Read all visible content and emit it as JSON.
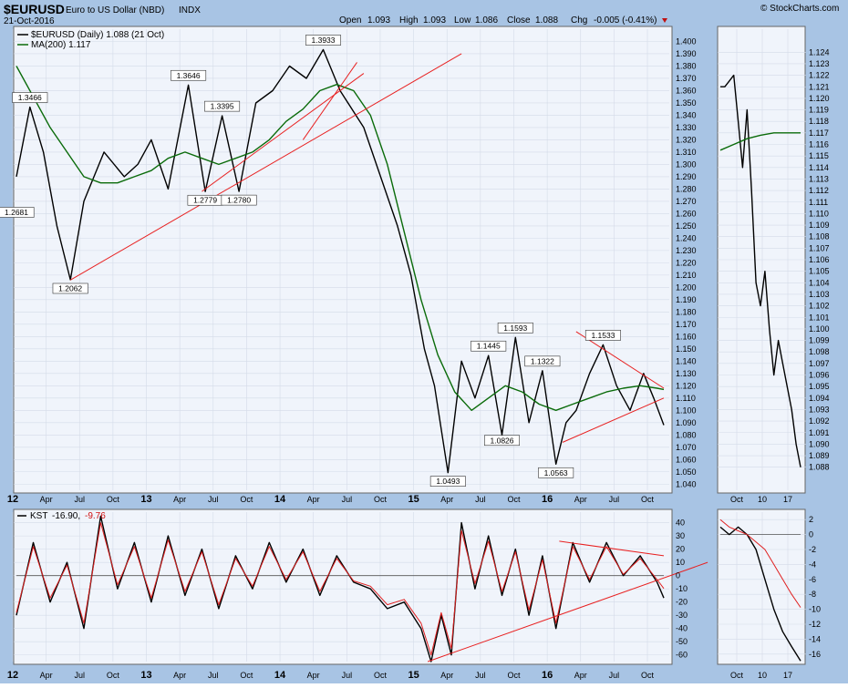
{
  "header": {
    "symbol": "$EURUSD",
    "name": "Euro to US Dollar (NBD)",
    "exchange": "INDX",
    "date": "21-Oct-2016",
    "brand": "© StockCharts.com",
    "open_label": "Open",
    "open": "1.093",
    "high_label": "High",
    "high": "1.093",
    "low_label": "Low",
    "low": "1.086",
    "close_label": "Close",
    "close": "1.088",
    "chg_label": "Chg",
    "chg": "-0.005 (-0.41%)"
  },
  "legend": {
    "price": "$EURUSD (Daily) 1.088 (21 Oct)",
    "ma": "MA(200) 1.117",
    "kst_name": "KST",
    "kst_value": "-16.90,",
    "kst_signal": "-9.76"
  },
  "colors": {
    "background": "#a8c4e4",
    "plot": "#f0f4fb",
    "price": "#000000",
    "ma": "#0a6b0a",
    "trendline": "#e82020",
    "signal": "#e02020"
  },
  "chart_data": [
    {
      "type": "line",
      "panel": "price",
      "ylim": [
        1.035,
        1.41
      ],
      "yticks": [
        1.04,
        1.05,
        1.06,
        1.07,
        1.08,
        1.09,
        1.1,
        1.11,
        1.12,
        1.13,
        1.14,
        1.15,
        1.16,
        1.17,
        1.18,
        1.19,
        1.2,
        1.21,
        1.22,
        1.23,
        1.24,
        1.25,
        1.26,
        1.27,
        1.28,
        1.29,
        1.3,
        1.31,
        1.32,
        1.33,
        1.34,
        1.35,
        1.36,
        1.37,
        1.38,
        1.39,
        1.4
      ],
      "xlabels": [
        "12",
        "Apr",
        "Jul",
        "Oct",
        "13",
        "Apr",
        "Jul",
        "Oct",
        "14",
        "Apr",
        "Jul",
        "Oct",
        "15",
        "Apr",
        "Jul",
        "Oct",
        "16",
        "Apr",
        "Jul",
        "Oct"
      ],
      "series": [
        {
          "name": "$EURUSD",
          "x": [
            0,
            0.4,
            0.8,
            1.2,
            1.6,
            2,
            2.6,
            3.2,
            3.6,
            4,
            4.5,
            5.1,
            5.6,
            6.1,
            6.6,
            7.1,
            7.6,
            8.1,
            8.6,
            9.1,
            9.6,
            10.3,
            10.8,
            11.3,
            11.7,
            12.1,
            12.4,
            12.8,
            13.2,
            13.6,
            14,
            14.4,
            14.8,
            15.2,
            15.6,
            16,
            16.3,
            16.6,
            17,
            17.4,
            17.8,
            18.2,
            18.6,
            18.9,
            19.2
          ],
          "values": [
            1.29,
            1.3466,
            1.31,
            1.25,
            1.2062,
            1.27,
            1.31,
            1.29,
            1.3,
            1.32,
            1.28,
            1.3646,
            1.2779,
            1.3395,
            1.278,
            1.35,
            1.36,
            1.38,
            1.37,
            1.3933,
            1.36,
            1.33,
            1.29,
            1.25,
            1.21,
            1.15,
            1.12,
            1.0493,
            1.14,
            1.11,
            1.1445,
            1.08,
            1.1593,
            1.09,
            1.1322,
            1.0563,
            1.09,
            1.1,
            1.13,
            1.1533,
            1.12,
            1.1,
            1.13,
            1.11,
            1.088
          ]
        },
        {
          "name": "MA(200)",
          "x": [
            0,
            0.5,
            1,
            1.5,
            2,
            2.5,
            3,
            3.5,
            4,
            4.5,
            5,
            5.5,
            6,
            6.5,
            7,
            7.5,
            8,
            8.5,
            9,
            9.5,
            10,
            10.5,
            11,
            11.5,
            12,
            12.5,
            13,
            13.5,
            14,
            14.5,
            15,
            15.5,
            16,
            16.5,
            17,
            17.5,
            18,
            18.5,
            19,
            19.2
          ],
          "values": [
            1.38,
            1.355,
            1.33,
            1.31,
            1.29,
            1.285,
            1.285,
            1.29,
            1.295,
            1.305,
            1.31,
            1.305,
            1.3,
            1.305,
            1.31,
            1.32,
            1.335,
            1.345,
            1.36,
            1.365,
            1.36,
            1.34,
            1.3,
            1.245,
            1.19,
            1.145,
            1.115,
            1.1,
            1.11,
            1.12,
            1.115,
            1.105,
            1.1,
            1.105,
            1.11,
            1.115,
            1.118,
            1.12,
            1.118,
            1.117
          ]
        }
      ],
      "annotations": [
        "1.2681",
        "1.3466",
        "1.2062",
        "1.3646",
        "1.2779",
        "1.3395",
        "1.2780",
        "1.3933",
        "1.0493",
        "1.1445",
        "1.0826",
        "1.1593",
        "1.1322",
        "1.0563",
        "1.1533"
      ]
    },
    {
      "type": "line",
      "panel": "kst",
      "ylim": [
        -65,
        48
      ],
      "yticks": [
        -60,
        -50,
        -40,
        -30,
        -20,
        -10,
        0,
        10,
        20,
        30,
        40
      ],
      "xlabels": [
        "12",
        "Apr",
        "Jul",
        "Oct",
        "13",
        "Apr",
        "Jul",
        "Oct",
        "14",
        "Apr",
        "Jul",
        "Oct",
        "15",
        "Apr",
        "Jul",
        "Oct",
        "16",
        "Apr",
        "Jul",
        "Oct"
      ],
      "series": [
        {
          "name": "KST",
          "x": [
            0,
            0.5,
            1,
            1.5,
            2,
            2.5,
            3,
            3.5,
            4,
            4.5,
            5,
            5.5,
            6,
            6.5,
            7,
            7.5,
            8,
            8.5,
            9,
            9.5,
            10,
            10.5,
            11,
            11.5,
            12,
            12.3,
            12.6,
            12.9,
            13.2,
            13.6,
            14,
            14.4,
            14.8,
            15.2,
            15.6,
            16,
            16.5,
            17,
            17.5,
            18,
            18.5,
            19,
            19.2
          ],
          "values": [
            -30,
            25,
            -20,
            10,
            -40,
            45,
            -10,
            25,
            -20,
            30,
            -15,
            20,
            -25,
            15,
            -10,
            25,
            -5,
            20,
            -15,
            15,
            -5,
            -10,
            -25,
            -20,
            -40,
            -65,
            -30,
            -60,
            40,
            -10,
            30,
            -15,
            20,
            -30,
            15,
            -40,
            25,
            -5,
            25,
            0,
            15,
            -5,
            -16.9
          ]
        },
        {
          "name": "Signal",
          "x": [
            0,
            0.5,
            1,
            1.5,
            2,
            2.5,
            3,
            3.5,
            4,
            4.5,
            5,
            5.5,
            6,
            6.5,
            7,
            7.5,
            8,
            8.5,
            9,
            9.5,
            10,
            10.5,
            11,
            11.5,
            12,
            12.3,
            12.6,
            12.9,
            13.2,
            13.6,
            14,
            14.4,
            14.8,
            15.2,
            15.6,
            16,
            16.5,
            17,
            17.5,
            18,
            18.5,
            19,
            19.2
          ],
          "values": [
            -28,
            22,
            -17,
            8,
            -36,
            40,
            -7,
            22,
            -17,
            27,
            -12,
            18,
            -22,
            13,
            -8,
            22,
            -3,
            18,
            -12,
            13,
            -4,
            -8,
            -22,
            -18,
            -36,
            -60,
            -28,
            -55,
            34,
            -6,
            26,
            -12,
            18,
            -26,
            12,
            -36,
            22,
            -3,
            22,
            1,
            13,
            -3,
            -9.76
          ]
        }
      ]
    },
    {
      "type": "line",
      "panel": "price-zoom",
      "ylim": [
        1.086,
        1.126
      ],
      "yticks": [
        1.088,
        1.089,
        1.09,
        1.091,
        1.092,
        1.093,
        1.094,
        1.095,
        1.096,
        1.097,
        1.098,
        1.099,
        1.1,
        1.101,
        1.102,
        1.103,
        1.104,
        1.105,
        1.106,
        1.107,
        1.108,
        1.109,
        1.11,
        1.111,
        1.112,
        1.113,
        1.114,
        1.115,
        1.116,
        1.117,
        1.118,
        1.119,
        1.12,
        1.121,
        1.122,
        1.123,
        1.124
      ],
      "xlabels": [
        "Oct",
        "10",
        "17"
      ],
      "series": [
        {
          "name": "$EURUSD",
          "x": [
            0,
            1,
            2,
            3,
            4,
            5,
            6,
            7,
            8,
            9,
            10,
            11,
            12,
            13,
            14,
            15,
            16,
            17,
            18
          ],
          "values": [
            1.121,
            1.121,
            1.1215,
            1.122,
            1.118,
            1.114,
            1.119,
            1.112,
            1.104,
            1.102,
            1.105,
            1.1,
            1.096,
            1.099,
            1.097,
            1.095,
            1.093,
            1.09,
            1.088
          ]
        },
        {
          "name": "MA(200)",
          "x": [
            0,
            3,
            6,
            9,
            12,
            15,
            18
          ],
          "values": [
            1.1155,
            1.116,
            1.1165,
            1.1168,
            1.117,
            1.117,
            1.117
          ]
        }
      ]
    },
    {
      "type": "line",
      "panel": "kst-zoom",
      "ylim": [
        -17,
        3
      ],
      "yticks": [
        -16,
        -14,
        -12,
        -10,
        -8,
        -6,
        -4,
        -2,
        0,
        2
      ],
      "xlabels": [
        "Oct",
        "10",
        "17"
      ],
      "series": [
        {
          "name": "KST",
          "x": [
            0,
            2,
            4,
            6,
            8,
            10,
            12,
            14,
            16,
            18
          ],
          "values": [
            1,
            0,
            1,
            0,
            -2,
            -6,
            -10,
            -13,
            -15,
            -16.9
          ]
        },
        {
          "name": "Signal",
          "x": [
            0,
            2,
            4,
            6,
            8,
            10,
            12,
            14,
            16,
            18
          ],
          "values": [
            2,
            1,
            0.5,
            0,
            -1,
            -2,
            -4,
            -6,
            -8,
            -9.76
          ]
        }
      ]
    }
  ]
}
